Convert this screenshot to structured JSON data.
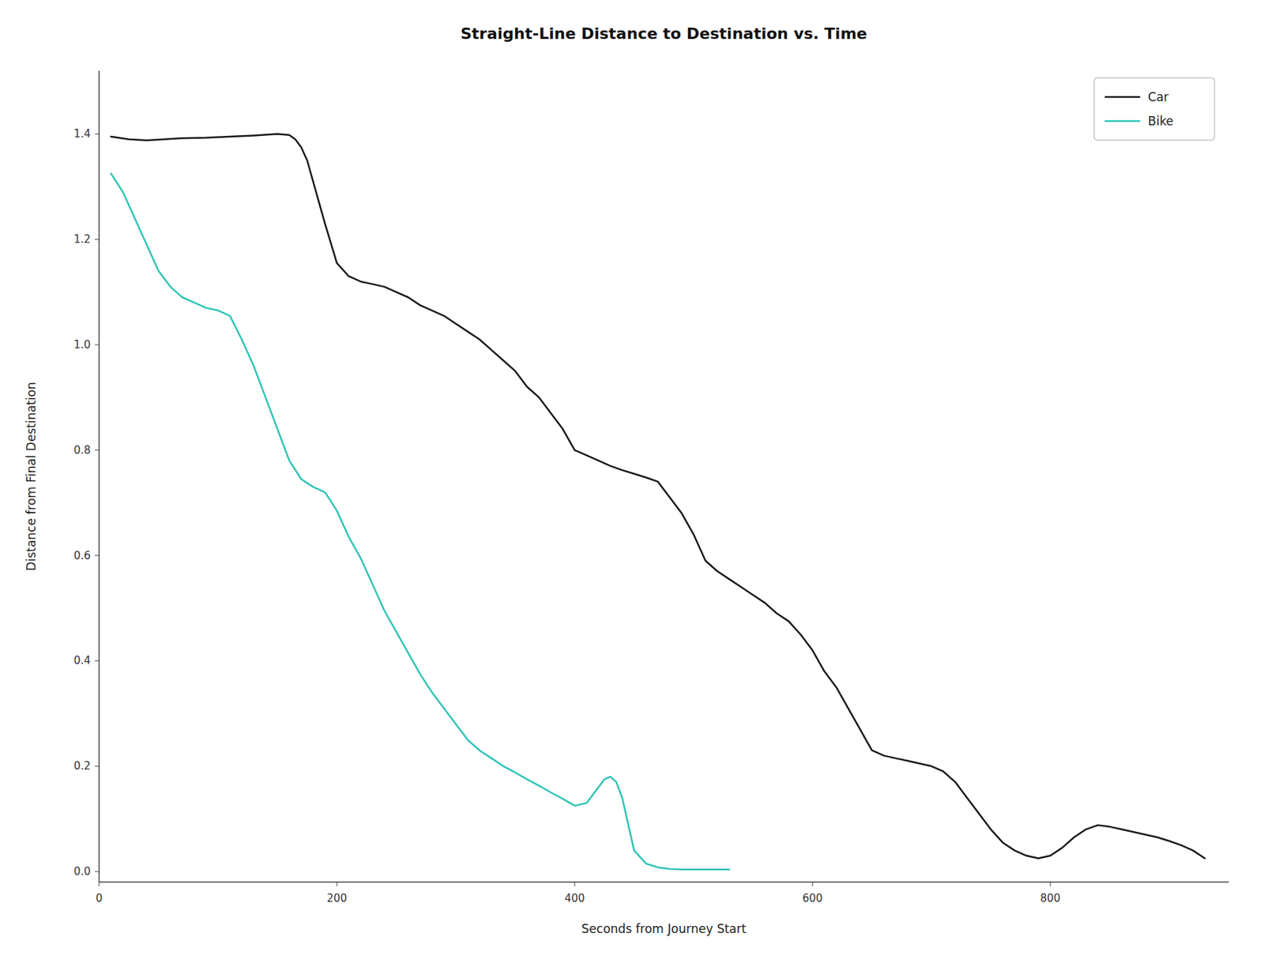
{
  "chart_data": {
    "type": "line",
    "title": "Straight-Line Distance to Destination vs. Time",
    "xlabel": "Seconds from Journey Start",
    "ylabel": "Distance from Final Destination",
    "xlim": [
      0,
      950
    ],
    "ylim": [
      -0.02,
      1.52
    ],
    "xticks": [
      0,
      200,
      400,
      600,
      800
    ],
    "yticks": [
      {
        "value": 0,
        "label": "0.0"
      },
      0.2,
      0.4,
      0.6,
      0.8,
      {
        "value": 1,
        "label": "1.0"
      },
      1.2,
      1.4
    ],
    "grid": false,
    "legend": "upper right",
    "series": [
      {
        "name": "Car",
        "color": "#1a1a1a",
        "x": [
          10,
          25,
          40,
          55,
          70,
          90,
          110,
          130,
          150,
          160,
          165,
          170,
          175,
          180,
          185,
          190,
          200,
          210,
          220,
          230,
          240,
          250,
          260,
          270,
          280,
          290,
          300,
          310,
          320,
          330,
          340,
          350,
          360,
          370,
          380,
          390,
          400,
          410,
          415,
          420,
          430,
          440,
          450,
          460,
          470,
          480,
          490,
          500,
          510,
          520,
          530,
          540,
          550,
          560,
          570,
          580,
          590,
          600,
          610,
          620,
          630,
          640,
          645,
          650,
          660,
          670,
          680,
          690,
          700,
          710,
          720,
          730,
          740,
          750,
          760,
          770,
          780,
          790,
          800,
          810,
          820,
          830,
          840,
          850,
          860,
          870,
          880,
          890,
          900,
          910,
          920,
          930
        ],
        "values": [
          1.395,
          1.39,
          1.388,
          1.39,
          1.392,
          1.393,
          1.395,
          1.397,
          1.4,
          1.398,
          1.39,
          1.375,
          1.35,
          1.31,
          1.27,
          1.23,
          1.155,
          1.13,
          1.12,
          1.115,
          1.11,
          1.1,
          1.09,
          1.075,
          1.065,
          1.055,
          1.04,
          1.025,
          1.01,
          0.99,
          0.97,
          0.95,
          0.92,
          0.9,
          0.87,
          0.84,
          0.8,
          0.79,
          0.785,
          0.78,
          0.77,
          0.762,
          0.755,
          0.748,
          0.74,
          0.71,
          0.68,
          0.64,
          0.59,
          0.57,
          0.555,
          0.54,
          0.525,
          0.51,
          0.49,
          0.475,
          0.45,
          0.42,
          0.38,
          0.35,
          0.31,
          0.27,
          0.25,
          0.23,
          0.22,
          0.215,
          0.21,
          0.205,
          0.2,
          0.19,
          0.17,
          0.14,
          0.11,
          0.08,
          0.055,
          0.04,
          0.03,
          0.025,
          0.03,
          0.045,
          0.065,
          0.08,
          0.088,
          0.085,
          0.08,
          0.075,
          0.07,
          0.065,
          0.058,
          0.05,
          0.04,
          0.025
        ]
      },
      {
        "name": "Bike",
        "color": "#2ec4b6",
        "x": [
          10,
          20,
          30,
          40,
          50,
          60,
          70,
          80,
          90,
          100,
          110,
          120,
          130,
          140,
          150,
          160,
          170,
          180,
          190,
          200,
          210,
          220,
          230,
          240,
          250,
          260,
          270,
          280,
          290,
          300,
          310,
          320,
          330,
          340,
          350,
          360,
          370,
          380,
          390,
          400,
          410,
          415,
          420,
          425,
          430,
          435,
          440,
          445,
          450,
          460,
          470,
          480,
          490,
          500,
          510,
          520,
          530
        ],
        "values": [
          1.325,
          1.29,
          1.24,
          1.19,
          1.14,
          1.11,
          1.09,
          1.08,
          1.07,
          1.065,
          1.055,
          1.01,
          0.96,
          0.9,
          0.84,
          0.78,
          0.745,
          0.73,
          0.72,
          0.685,
          0.635,
          0.595,
          0.545,
          0.495,
          0.455,
          0.415,
          0.375,
          0.34,
          0.31,
          0.28,
          0.25,
          0.23,
          0.215,
          0.2,
          0.188,
          0.175,
          0.163,
          0.15,
          0.138,
          0.125,
          0.13,
          0.145,
          0.16,
          0.175,
          0.18,
          0.17,
          0.14,
          0.09,
          0.04,
          0.015,
          0.008,
          0.005,
          0.004,
          0.004,
          0.004,
          0.004,
          0.004
        ]
      }
    ]
  }
}
